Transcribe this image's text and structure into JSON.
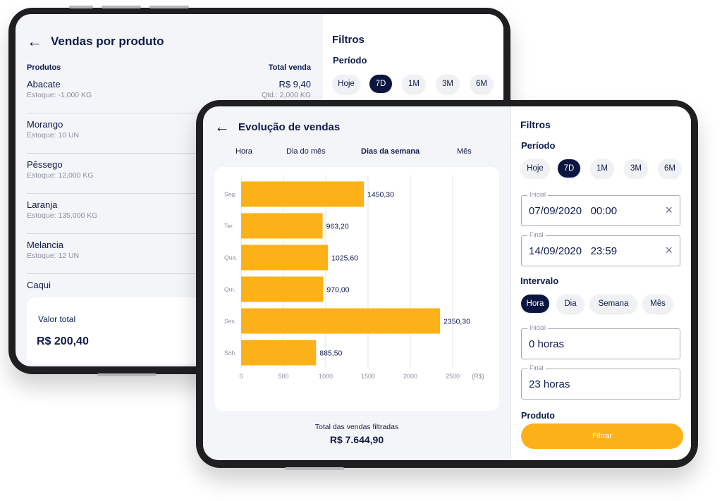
{
  "back": {
    "title": "Vendas por produto",
    "col_products": "Produtos",
    "col_total": "Total venda",
    "products": [
      {
        "name": "Abacate",
        "stock": "Estoque: -1,000 KG",
        "value": "R$ 9,40",
        "qty": "Qtd.: 2,000 KG"
      },
      {
        "name": "Morango",
        "stock": "Estoque: 10 UN",
        "value": "",
        "qty": ""
      },
      {
        "name": "Pêssego",
        "stock": "Estoque: 12,000 KG",
        "value": "",
        "qty": ""
      },
      {
        "name": "Laranja",
        "stock": "Estoque: 135,000 KG",
        "value": "",
        "qty": ""
      },
      {
        "name": "Melancia",
        "stock": "Estoque: 12 UN",
        "value": "",
        "qty": ""
      },
      {
        "name": "Caqui",
        "stock": "",
        "value": "",
        "qty": ""
      }
    ],
    "total_label": "Valor total",
    "total_value": "R$ 200,40",
    "filters_title": "Filtros",
    "period_label": "Período",
    "period_chips": [
      "Hoje",
      "7D",
      "1M",
      "3M",
      "6M"
    ],
    "period_selected": "7D"
  },
  "front": {
    "title": "Evolução de vendas",
    "tabs": [
      "Hora",
      "Dia do mês",
      "Dias da semana",
      "Mês"
    ],
    "active_tab": "Dias da semana",
    "total_label": "Total das vendas filtradas",
    "total_value": "R$ 7.644,90",
    "filters": {
      "title": "Filtros",
      "period_label": "Período",
      "period_chips": [
        "Hoje",
        "7D",
        "1M",
        "3M",
        "6M"
      ],
      "period_selected": "7D",
      "start_label": "Inicial",
      "start_value": "07/09/2020   00:00",
      "end_label": "Final",
      "end_value": "14/09/2020   23:59",
      "interval_label": "Intervalo",
      "interval_chips": [
        "Hora",
        "Dia",
        "Semana",
        "Mês"
      ],
      "interval_selected": "Hora",
      "interval_start_label": "Inicial",
      "interval_start_value": "0 horas",
      "interval_end_label": "Final",
      "interval_end_value": "23 horas",
      "product_label": "Produto",
      "apply_label": "Filtrar",
      "clear_icon": "×"
    }
  },
  "colors": {
    "navy": "#0b1640",
    "accent": "#fbb117"
  },
  "chart_data": {
    "type": "bar",
    "orientation": "horizontal",
    "categories": [
      "Seg.",
      "Ter.",
      "Qua.",
      "Qui.",
      "Sex.",
      "Sáb."
    ],
    "values": [
      1450.3,
      963.2,
      1025.6,
      970.0,
      2350.3,
      885.5
    ],
    "value_labels": [
      "1450,30",
      "963,20",
      "1025,60",
      "970,00",
      "2350,30",
      "885,50"
    ],
    "x_ticks": [
      "0",
      "500",
      "1000",
      "1500",
      "2000",
      "2500"
    ],
    "x_unit": "(R$)",
    "xlim": [
      0,
      2500
    ],
    "grid": true,
    "color": "#fbb117"
  }
}
